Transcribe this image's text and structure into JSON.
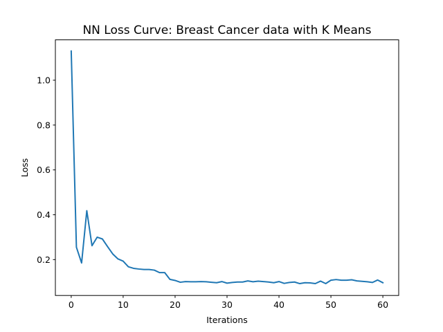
{
  "chart_data": {
    "type": "line",
    "title": "NN Loss Curve: Breast Cancer data with K Means",
    "xlabel": "Iterations",
    "ylabel": "Loss",
    "xlim": [
      -3.05,
      63.05
    ],
    "ylim": [
      0.04,
      1.18
    ],
    "xticks": [
      0,
      10,
      20,
      30,
      40,
      50,
      60
    ],
    "yticks": [
      0.2,
      0.4,
      0.6,
      0.8,
      1.0
    ],
    "ytick_labels": [
      "0.2",
      "0.4",
      "0.6",
      "0.8",
      "1.0"
    ],
    "grid": false,
    "series": [
      {
        "color": "#1f77b4",
        "x": [
          0,
          1,
          2,
          3,
          4,
          5,
          6,
          7,
          8,
          9,
          10,
          11,
          12,
          13,
          14,
          15,
          16,
          17,
          18,
          19,
          20,
          21,
          22,
          23,
          24,
          25,
          26,
          27,
          28,
          29,
          30,
          31,
          32,
          33,
          34,
          35,
          36,
          37,
          38,
          39,
          40,
          41,
          42,
          43,
          44,
          45,
          46,
          47,
          48,
          49,
          50,
          51,
          52,
          53,
          54,
          55,
          56,
          57,
          58,
          59,
          60
        ],
        "y": [
          1.13,
          0.255,
          0.185,
          0.418,
          0.262,
          0.3,
          0.292,
          0.258,
          0.225,
          0.203,
          0.193,
          0.168,
          0.161,
          0.158,
          0.156,
          0.156,
          0.153,
          0.142,
          0.142,
          0.112,
          0.107,
          0.099,
          0.102,
          0.101,
          0.101,
          0.102,
          0.101,
          0.099,
          0.097,
          0.102,
          0.095,
          0.098,
          0.1,
          0.1,
          0.105,
          0.101,
          0.104,
          0.102,
          0.1,
          0.097,
          0.102,
          0.094,
          0.098,
          0.1,
          0.093,
          0.097,
          0.096,
          0.093,
          0.104,
          0.093,
          0.108,
          0.111,
          0.108,
          0.108,
          0.11,
          0.105,
          0.103,
          0.101,
          0.098,
          0.109,
          0.097
        ]
      }
    ]
  }
}
